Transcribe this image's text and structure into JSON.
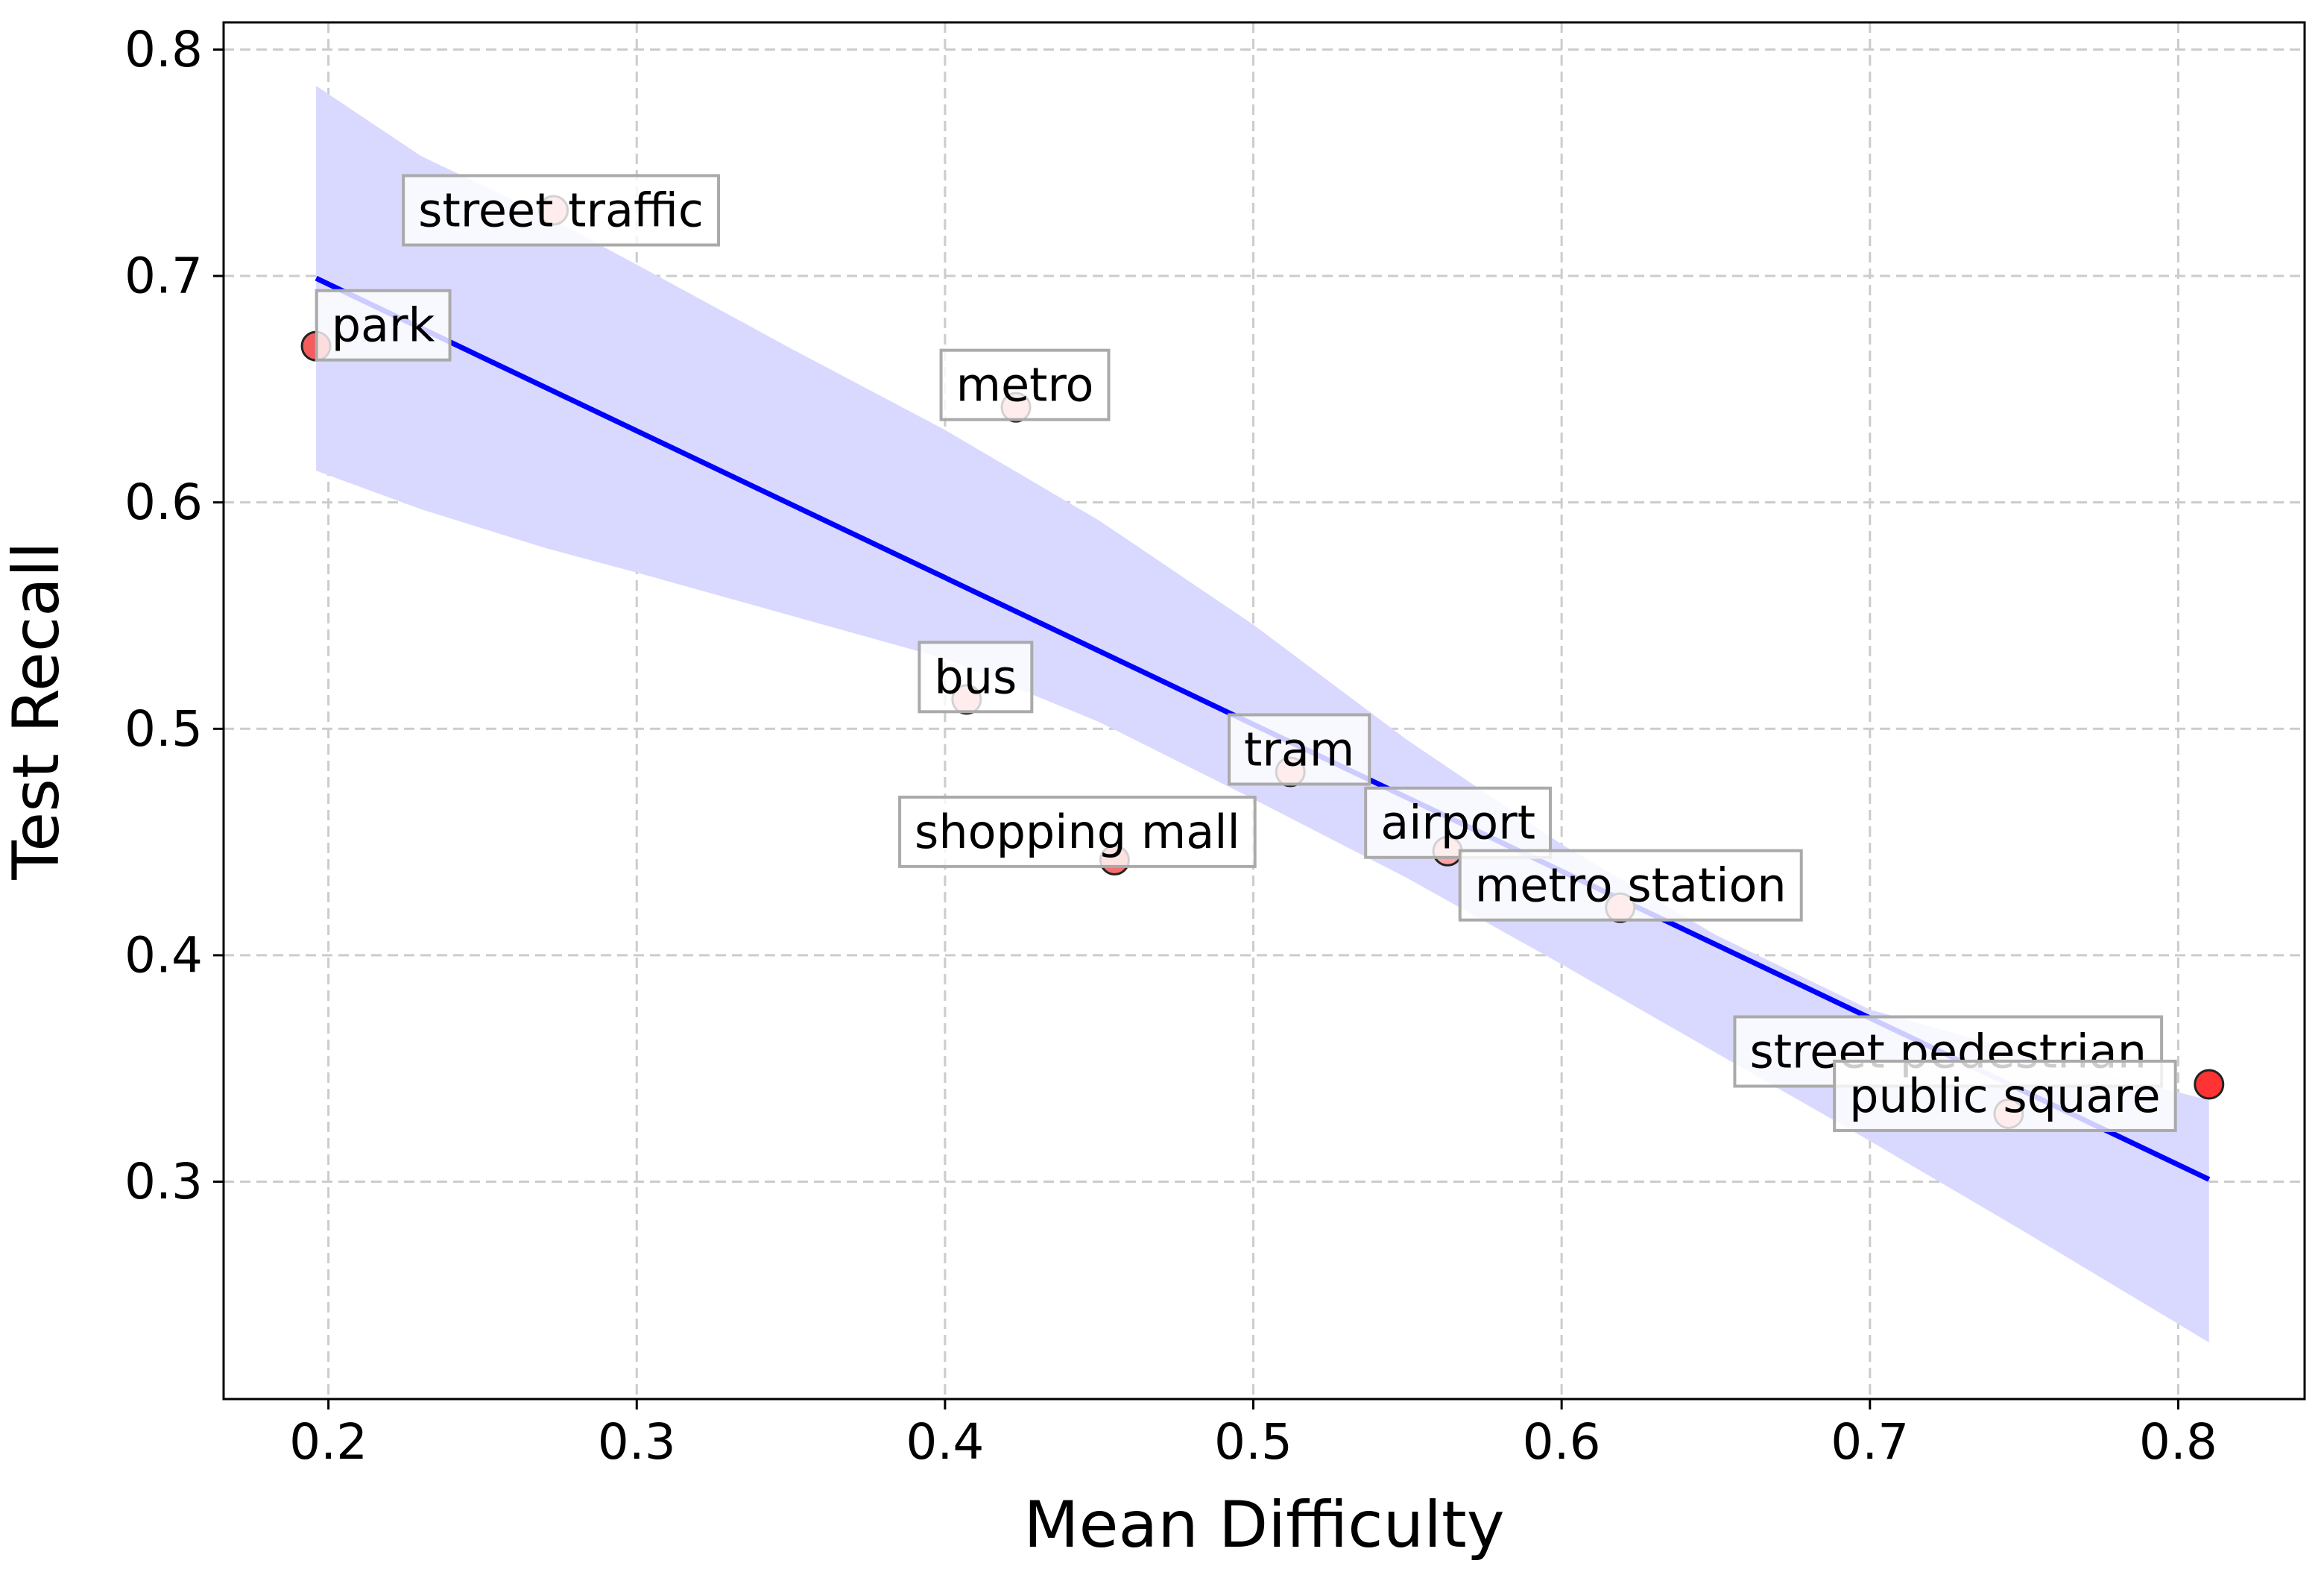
{
  "chart_data": {
    "type": "scatter",
    "xlabel": "Mean Difficulty",
    "ylabel": "Test Recall",
    "xlim": [
      0.166,
      0.841
    ],
    "ylim": [
      0.204,
      0.812
    ],
    "xticks": [
      0.2,
      0.3,
      0.4,
      0.5,
      0.6,
      0.7,
      0.8
    ],
    "yticks": [
      0.3,
      0.4,
      0.5,
      0.6,
      0.7,
      0.8
    ],
    "grid": true,
    "points": [
      {
        "label": "street traffic",
        "x": 0.273,
        "y": 0.729,
        "color": "#ffa3a3"
      },
      {
        "label": "park",
        "x": 0.196,
        "y": 0.669,
        "color": "#f35d5d"
      },
      {
        "label": "metro",
        "x": 0.423,
        "y": 0.642,
        "color": "#ffa3a3"
      },
      {
        "label": "bus",
        "x": 0.407,
        "y": 0.513,
        "color": "#ffa3a3"
      },
      {
        "label": "tram",
        "x": 0.512,
        "y": 0.481,
        "color": "#ffa3a3"
      },
      {
        "label": "shopping mall",
        "x": 0.455,
        "y": 0.442,
        "color": "#f67070"
      },
      {
        "label": "airport",
        "x": 0.563,
        "y": 0.446,
        "color": "#ffa3a3"
      },
      {
        "label": "metro station",
        "x": 0.619,
        "y": 0.421,
        "color": "#ffa3a3"
      },
      {
        "label": "street pedestrian",
        "x": 0.81,
        "y": 0.343,
        "color": "#ff3333"
      },
      {
        "label": "public square",
        "x": 0.745,
        "y": 0.33,
        "color": "#ffa3a3"
      }
    ],
    "regression": {
      "x": [
        0.196,
        0.81
      ],
      "y": [
        0.699,
        0.301
      ],
      "color": "#0000ff"
    },
    "confidence_band": {
      "color": "#d9d9ff",
      "x": [
        0.196,
        0.23,
        0.27,
        0.3,
        0.35,
        0.4,
        0.45,
        0.5,
        0.55,
        0.6,
        0.65,
        0.7,
        0.75,
        0.81
      ],
      "upper": [
        0.784,
        0.753,
        0.727,
        0.705,
        0.668,
        0.632,
        0.592,
        0.546,
        0.495,
        0.449,
        0.409,
        0.376,
        0.357,
        0.336
      ],
      "lower": [
        0.614,
        0.597,
        0.58,
        0.569,
        0.55,
        0.531,
        0.503,
        0.469,
        0.434,
        0.396,
        0.357,
        0.318,
        0.278,
        0.229
      ]
    }
  }
}
